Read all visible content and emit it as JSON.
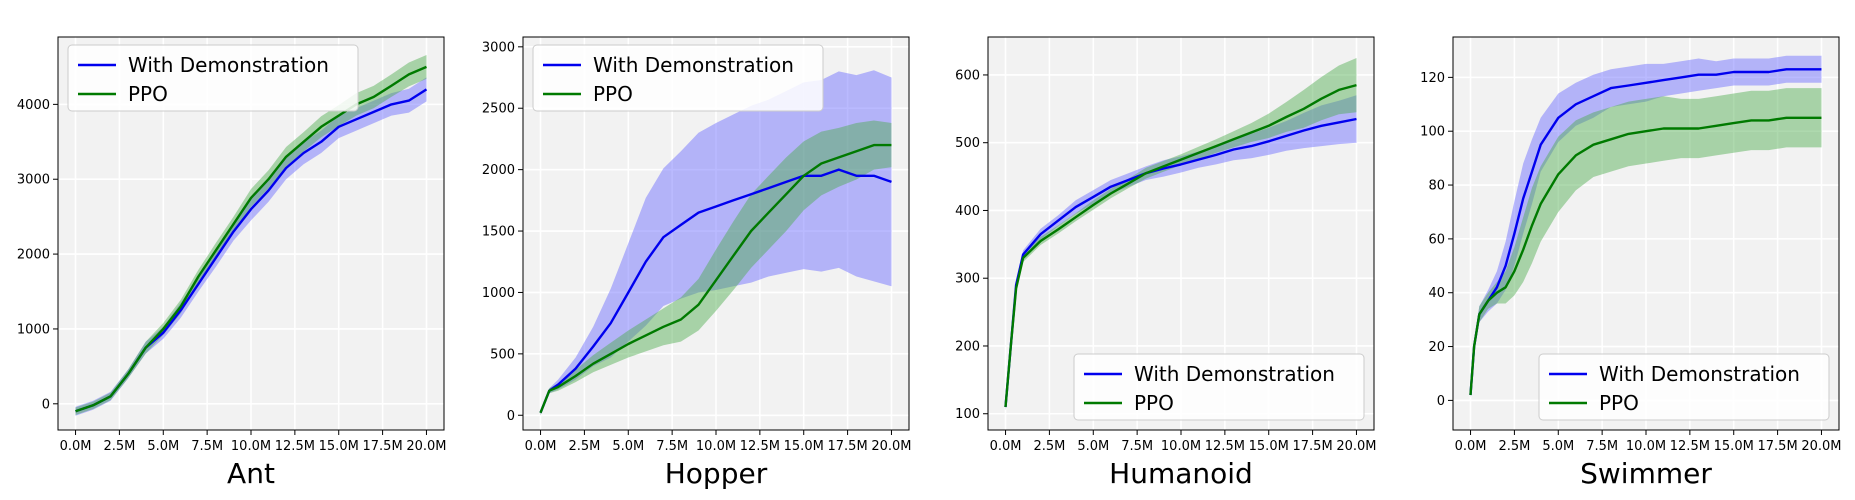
{
  "legend_labels": [
    "With Demonstration",
    "PPO"
  ],
  "colors": {
    "with_demo": "#0000ee",
    "ppo": "#007a00",
    "with_demo_band": "#6666ff",
    "ppo_band": "#4cab4c",
    "panel_bg": "#f2f2f2",
    "grid": "#ffffff"
  },
  "chart_data": [
    {
      "type": "line",
      "title": "",
      "xlabel": "Ant",
      "ylabel": "",
      "xlim": [
        -1.0,
        21.0
      ],
      "ylim": [
        -350,
        4900
      ],
      "grid": true,
      "legend_position": "top-left",
      "x_ticks": [
        0,
        2.5,
        5,
        7.5,
        10,
        12.5,
        15,
        17.5,
        20
      ],
      "x_tick_labels": [
        "0.0M",
        "2.5M",
        "5.0M",
        "7.5M",
        "10.0M",
        "12.5M",
        "15.0M",
        "17.5M",
        "20.0M"
      ],
      "y_ticks": [
        0,
        1000,
        2000,
        3000,
        4000
      ],
      "y_tick_labels": [
        "0",
        "1000",
        "2000",
        "3000",
        "4000"
      ],
      "x": [
        0,
        1,
        2,
        3,
        4,
        5,
        6,
        7,
        8,
        9,
        10,
        11,
        12,
        13,
        14,
        15,
        16,
        17,
        18,
        19,
        20
      ],
      "series": [
        {
          "name": "With Demonstration",
          "values": [
            -100,
            -20,
            100,
            400,
            750,
            950,
            1250,
            1600,
            1950,
            2300,
            2600,
            2850,
            3150,
            3350,
            3500,
            3700,
            3800,
            3900,
            4000,
            4050,
            4200
          ],
          "band": [
            60,
            60,
            60,
            60,
            80,
            80,
            100,
            100,
            120,
            120,
            150,
            150,
            150,
            150,
            150,
            150,
            150,
            150,
            150,
            160,
            160
          ]
        },
        {
          "name": "PPO",
          "values": [
            -100,
            -20,
            100,
            400,
            750,
            1000,
            1300,
            1700,
            2050,
            2400,
            2750,
            3000,
            3300,
            3500,
            3700,
            3850,
            4000,
            4100,
            4250,
            4400,
            4500
          ],
          "band": [
            50,
            50,
            50,
            60,
            80,
            80,
            90,
            90,
            100,
            100,
            120,
            120,
            130,
            130,
            140,
            140,
            150,
            150,
            150,
            160,
            160
          ]
        }
      ]
    },
    {
      "type": "line",
      "title": "",
      "xlabel": "Hopper",
      "ylabel": "",
      "xlim": [
        -1.0,
        21.0
      ],
      "ylim": [
        -120,
        3080
      ],
      "grid": true,
      "legend_position": "top-left",
      "x_ticks": [
        0,
        2.5,
        5,
        7.5,
        10,
        12.5,
        15,
        17.5,
        20
      ],
      "x_tick_labels": [
        "0.0M",
        "2.5M",
        "5.0M",
        "7.5M",
        "10.0M",
        "12.5M",
        "15.0M",
        "17.5M",
        "20.0M"
      ],
      "y_ticks": [
        0,
        500,
        1000,
        1500,
        2000,
        2500,
        3000
      ],
      "y_tick_labels": [
        "0",
        "500",
        "1000",
        "1500",
        "2000",
        "2500",
        "3000"
      ],
      "x": [
        0,
        0.5,
        1,
        2,
        3,
        4,
        5,
        6,
        7,
        8,
        9,
        10,
        11,
        12,
        13,
        14,
        15,
        16,
        17,
        18,
        19,
        20
      ],
      "series": [
        {
          "name": "With Demonstration",
          "values": [
            20,
            200,
            250,
            380,
            560,
            750,
            1000,
            1250,
            1450,
            1550,
            1650,
            1700,
            1750,
            1800,
            1850,
            1900,
            1950,
            1950,
            2000,
            1950,
            1950,
            1900
          ],
          "band": [
            20,
            20,
            40,
            90,
            160,
            280,
            400,
            520,
            560,
            600,
            650,
            680,
            700,
            720,
            720,
            740,
            760,
            780,
            800,
            820,
            860,
            850
          ]
        },
        {
          "name": "PPO",
          "values": [
            20,
            200,
            230,
            320,
            420,
            500,
            580,
            650,
            720,
            780,
            900,
            1100,
            1300,
            1500,
            1650,
            1800,
            1950,
            2050,
            2100,
            2150,
            2200,
            2200
          ],
          "band": [
            20,
            20,
            30,
            50,
            70,
            90,
            110,
            130,
            150,
            180,
            210,
            250,
            280,
            300,
            300,
            300,
            280,
            260,
            240,
            230,
            200,
            180
          ]
        }
      ]
    },
    {
      "type": "line",
      "title": "",
      "xlabel": "Humanoid",
      "ylabel": "",
      "xlim": [
        -1.0,
        21.0
      ],
      "ylim": [
        76,
        656
      ],
      "grid": true,
      "legend_position": "bottom-right",
      "x_ticks": [
        0,
        2.5,
        5,
        7.5,
        10,
        12.5,
        15,
        17.5,
        20
      ],
      "x_tick_labels": [
        "0.0M",
        "2.5M",
        "5.0M",
        "7.5M",
        "10.0M",
        "12.5M",
        "15.0M",
        "17.5M",
        "20.0M"
      ],
      "y_ticks": [
        100,
        200,
        300,
        400,
        500,
        600
      ],
      "y_tick_labels": [
        "100",
        "200",
        "300",
        "400",
        "500",
        "600"
      ],
      "x": [
        0,
        0.3,
        0.6,
        1,
        2,
        3,
        4,
        5,
        6,
        7,
        8,
        9,
        10,
        11,
        12,
        13,
        14,
        15,
        16,
        17,
        18,
        19,
        20
      ],
      "series": [
        {
          "name": "With Demonstration",
          "values": [
            110,
            200,
            290,
            335,
            365,
            385,
            405,
            420,
            435,
            445,
            455,
            462,
            468,
            475,
            482,
            490,
            495,
            502,
            510,
            518,
            525,
            530,
            535
          ],
          "band": [
            5,
            5,
            5,
            6,
            8,
            8,
            10,
            10,
            10,
            10,
            10,
            12,
            12,
            12,
            14,
            16,
            18,
            20,
            22,
            26,
            30,
            32,
            35
          ]
        },
        {
          "name": "PPO",
          "values": [
            110,
            200,
            285,
            330,
            355,
            372,
            390,
            408,
            425,
            440,
            455,
            465,
            475,
            485,
            495,
            505,
            515,
            525,
            538,
            550,
            565,
            578,
            585
          ],
          "band": [
            5,
            5,
            5,
            6,
            6,
            6,
            6,
            7,
            7,
            7,
            8,
            8,
            8,
            9,
            10,
            12,
            14,
            18,
            22,
            28,
            32,
            36,
            40
          ]
        }
      ]
    },
    {
      "type": "line",
      "title": "",
      "xlabel": "Swimmer",
      "ylabel": "",
      "xlim": [
        -1.0,
        21.0
      ],
      "ylim": [
        -11,
        135
      ],
      "grid": true,
      "legend_position": "bottom-right",
      "x_ticks": [
        0,
        2.5,
        5,
        7.5,
        10,
        12.5,
        15,
        17.5,
        20
      ],
      "x_tick_labels": [
        "0.0M",
        "2.5M",
        "5.0M",
        "7.5M",
        "10.0M",
        "12.5M",
        "15.0M",
        "17.5M",
        "20.0M"
      ],
      "y_ticks": [
        0,
        20,
        40,
        60,
        80,
        100,
        120
      ],
      "y_tick_labels": [
        "0",
        "20",
        "40",
        "60",
        "80",
        "100",
        "120"
      ],
      "x": [
        0,
        0.2,
        0.5,
        1,
        1.5,
        2,
        2.5,
        3,
        3.5,
        4,
        5,
        6,
        7,
        8,
        9,
        10,
        11,
        12,
        13,
        14,
        15,
        16,
        17,
        18,
        19,
        20
      ],
      "series": [
        {
          "name": "With Demonstration",
          "values": [
            2,
            20,
            32,
            37,
            42,
            50,
            62,
            75,
            85,
            95,
            105,
            110,
            113,
            116,
            117,
            118,
            119,
            120,
            121,
            121,
            122,
            122,
            122,
            123,
            123,
            123
          ],
          "band": [
            1,
            2,
            3,
            4,
            6,
            9,
            12,
            13,
            12,
            10,
            9,
            8,
            8,
            7,
            7,
            7,
            6,
            6,
            6,
            5,
            5,
            5,
            5,
            5,
            5,
            5
          ]
        },
        {
          "name": "PPO",
          "values": [
            2,
            20,
            32,
            37,
            40,
            42,
            48,
            56,
            65,
            73,
            84,
            91,
            95,
            97,
            99,
            100,
            101,
            101,
            101,
            102,
            103,
            104,
            104,
            105,
            105,
            105
          ],
          "band": [
            1,
            2,
            3,
            3,
            4,
            6,
            9,
            12,
            14,
            14,
            14,
            13,
            12,
            12,
            12,
            12,
            12,
            11,
            11,
            11,
            11,
            11,
            11,
            11,
            11,
            11
          ]
        }
      ]
    }
  ]
}
